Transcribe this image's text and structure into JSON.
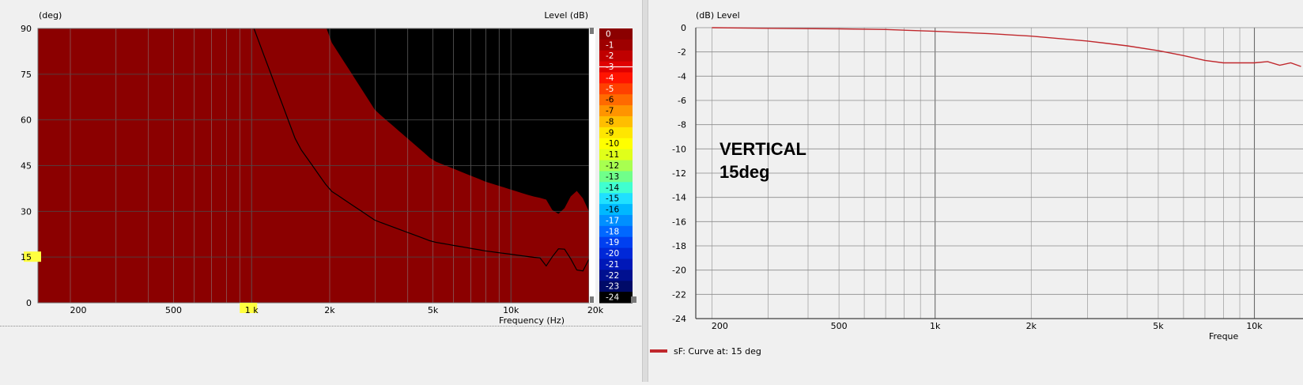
{
  "polar_map": {
    "y_unit_label": "(deg)",
    "level_label": "Level  (dB)",
    "x_unit_label": "Frequency  (Hz)",
    "x_ticks": [
      "200",
      "500",
      "1 k",
      "2k",
      "5k",
      "10k",
      "20k"
    ],
    "x_tick_values": [
      200,
      500,
      1000,
      2000,
      5000,
      10000,
      20000
    ],
    "y_ticks": [
      "0",
      "15",
      "30",
      "45",
      "60",
      "75",
      "90"
    ],
    "y_tick_values": [
      0,
      15,
      30,
      45,
      60,
      75,
      90
    ],
    "highlight_y": "15",
    "highlight_x": "1 k",
    "colorbar_labels": [
      "0",
      "-1",
      "-2",
      "-3",
      "-4",
      "-5",
      "-6",
      "-7",
      "-8",
      "-9",
      "-10",
      "-11",
      "-12",
      "-13",
      "-14",
      "-15",
      "-16",
      "-17",
      "-18",
      "-19",
      "-20",
      "-21",
      "-22",
      "-23",
      "-24"
    ],
    "colorbar_colors": [
      "#8b0000",
      "#9e0000",
      "#c00000",
      "#e00000",
      "#ff1400",
      "#ff4000",
      "#ff6a00",
      "#ff9400",
      "#ffbe00",
      "#ffe600",
      "#ffff00",
      "#e0ff1a",
      "#a8ff50",
      "#70ff8a",
      "#40ffd0",
      "#20e0ff",
      "#00b8ff",
      "#0090ff",
      "#0068ff",
      "#0040f0",
      "#0028d8",
      "#0018b8",
      "#001090",
      "#000a68",
      "#000000"
    ]
  },
  "chart_data": {
    "type": "line",
    "ylabel": "(dB)  Level",
    "xlabel": "Freque",
    "ylim": [
      -24,
      0
    ],
    "y_ticks": [
      "0",
      "-2",
      "-4",
      "-6",
      "-8",
      "-10",
      "-12",
      "-14",
      "-16",
      "-18",
      "-20",
      "-22",
      "-24"
    ],
    "x_ticks": [
      "200",
      "500",
      "1k",
      "2k",
      "5k",
      "10k"
    ],
    "series": [
      {
        "name": "sF: Curve at: 15 deg",
        "color": "#c0282d",
        "x": [
          200,
          300,
          500,
          700,
          1000,
          1500,
          2000,
          3000,
          4000,
          5000,
          6000,
          7000,
          8000,
          9000,
          10000,
          11000,
          12000,
          13000,
          14000
        ],
        "y": [
          0,
          -0.05,
          -0.1,
          -0.15,
          -0.3,
          -0.5,
          -0.7,
          -1.1,
          -1.5,
          -1.9,
          -2.3,
          -2.7,
          -2.9,
          -2.9,
          -2.9,
          -2.8,
          -3.1,
          -2.9,
          -3.2
        ]
      }
    ],
    "annotation": "VERTICAL\n15deg",
    "legend": "sF: Curve at: 15 deg"
  }
}
